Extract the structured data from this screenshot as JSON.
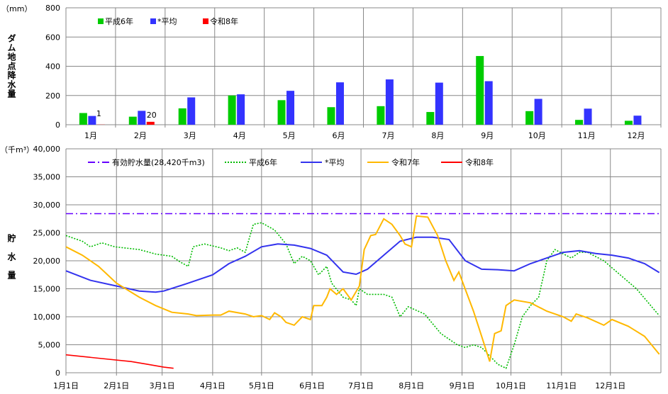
{
  "chart_data": [
    {
      "type": "bar",
      "unit_label": "（mm）",
      "ylabel": "ダム地点降水量",
      "ylim": [
        0,
        800
      ],
      "yticks": [
        "0",
        "200",
        "400",
        "600",
        "800"
      ],
      "categories": [
        "1月",
        "2月",
        "3月",
        "4月",
        "5月",
        "6月",
        "7月",
        "8月",
        "9月",
        "10月",
        "11月",
        "12月"
      ],
      "series": [
        {
          "name": "平成6年",
          "color": "#00cc00",
          "values": [
            80,
            55,
            112,
            200,
            168,
            120,
            127,
            87,
            470,
            93,
            33,
            27
          ]
        },
        {
          "name": "*平均",
          "color": "#3333ff",
          "values": [
            60,
            95,
            187,
            208,
            232,
            290,
            310,
            288,
            298,
            177,
            110,
            62
          ]
        },
        {
          "name": "令和8年",
          "color": "#ff0000",
          "values": [
            1,
            20,
            null,
            null,
            null,
            null,
            null,
            null,
            null,
            null,
            null,
            null
          ]
        }
      ],
      "data_labels": [
        "1",
        "20"
      ],
      "legend": "top-left"
    },
    {
      "type": "line",
      "unit_label": "（千m³）",
      "ylabel": "貯水量",
      "ylim": [
        0,
        40000
      ],
      "yticks": [
        "0",
        "5,000",
        "10,000",
        "15,000",
        "20,000",
        "25,000",
        "30,000",
        "35,000",
        "40,000"
      ],
      "xticks": [
        "1月1日",
        "2月1日",
        "3月1日",
        "4月1日",
        "5月1日",
        "6月1日",
        "7月1日",
        "8月1日",
        "9月1日",
        "10月1日",
        "11月1日",
        "12月1日"
      ],
      "xtick_days": [
        0,
        31,
        59,
        90,
        120,
        151,
        181,
        212,
        243,
        273,
        304,
        334
      ],
      "xlim_days": [
        0,
        365
      ],
      "legend": "top",
      "series": [
        {
          "name": "有効貯水量(28,420千m3)",
          "color": "#6600ff",
          "style": "dashdot",
          "points": [
            [
              0,
              28420
            ],
            [
              365,
              28420
            ]
          ]
        },
        {
          "name": "平成6年",
          "color": "#00bb00",
          "style": "dotted",
          "points": [
            [
              0,
              24500
            ],
            [
              10,
              23500
            ],
            [
              15,
              22500
            ],
            [
              22,
              23200
            ],
            [
              30,
              22500
            ],
            [
              45,
              22000
            ],
            [
              55,
              21200
            ],
            [
              65,
              20800
            ],
            [
              70,
              19800
            ],
            [
              75,
              19000
            ],
            [
              78,
              22500
            ],
            [
              85,
              23000
            ],
            [
              95,
              22300
            ],
            [
              100,
              21800
            ],
            [
              105,
              22300
            ],
            [
              110,
              21500
            ],
            [
              115,
              26500
            ],
            [
              120,
              26800
            ],
            [
              128,
              25500
            ],
            [
              135,
              23000
            ],
            [
              140,
              19500
            ],
            [
              145,
              20800
            ],
            [
              150,
              20000
            ],
            [
              155,
              17500
            ],
            [
              160,
              19000
            ],
            [
              163,
              16000
            ],
            [
              170,
              13500
            ],
            [
              175,
              13000
            ],
            [
              178,
              12000
            ],
            [
              180,
              15000
            ],
            [
              185,
              14000
            ],
            [
              195,
              14000
            ],
            [
              200,
              13500
            ],
            [
              205,
              10000
            ],
            [
              210,
              11800
            ],
            [
              220,
              10500
            ],
            [
              230,
              7000
            ],
            [
              240,
              5000
            ],
            [
              245,
              4500
            ],
            [
              250,
              5000
            ],
            [
              255,
              4500
            ],
            [
              260,
              3000
            ],
            [
              265,
              1500
            ],
            [
              270,
              800
            ],
            [
              275,
              5000
            ],
            [
              280,
              10000
            ],
            [
              285,
              12000
            ],
            [
              290,
              13500
            ],
            [
              295,
              20000
            ],
            [
              300,
              22000
            ],
            [
              310,
              20500
            ],
            [
              315,
              21500
            ],
            [
              320,
              21500
            ],
            [
              330,
              20000
            ],
            [
              340,
              17500
            ],
            [
              350,
              15000
            ],
            [
              364,
              10200
            ]
          ]
        },
        {
          "name": "*平均",
          "color": "#3333ee",
          "style": "solid",
          "points": [
            [
              0,
              18200
            ],
            [
              15,
              16500
            ],
            [
              31,
              15500
            ],
            [
              45,
              14600
            ],
            [
              55,
              14400
            ],
            [
              60,
              14600
            ],
            [
              75,
              16000
            ],
            [
              90,
              17500
            ],
            [
              100,
              19500
            ],
            [
              110,
              20800
            ],
            [
              120,
              22500
            ],
            [
              130,
              23000
            ],
            [
              140,
              22800
            ],
            [
              150,
              22200
            ],
            [
              160,
              21000
            ],
            [
              170,
              18000
            ],
            [
              178,
              17600
            ],
            [
              185,
              18500
            ],
            [
              195,
              21000
            ],
            [
              205,
              23500
            ],
            [
              215,
              24200
            ],
            [
              225,
              24200
            ],
            [
              235,
              23800
            ],
            [
              245,
              20000
            ],
            [
              255,
              18500
            ],
            [
              265,
              18400
            ],
            [
              275,
              18200
            ],
            [
              285,
              19500
            ],
            [
              295,
              20500
            ],
            [
              305,
              21500
            ],
            [
              315,
              21800
            ],
            [
              325,
              21300
            ],
            [
              335,
              21000
            ],
            [
              345,
              20500
            ],
            [
              355,
              19500
            ],
            [
              364,
              17900
            ]
          ]
        },
        {
          "name": "令和7年",
          "color": "#ffb800",
          "style": "solid",
          "points": [
            [
              0,
              22500
            ],
            [
              10,
              21000
            ],
            [
              20,
              19000
            ],
            [
              31,
              16000
            ],
            [
              45,
              13500
            ],
            [
              55,
              12000
            ],
            [
              65,
              10800
            ],
            [
              75,
              10500
            ],
            [
              80,
              10200
            ],
            [
              90,
              10300
            ],
            [
              95,
              10300
            ],
            [
              100,
              11000
            ],
            [
              110,
              10500
            ],
            [
              115,
              10000
            ],
            [
              120,
              10200
            ],
            [
              125,
              9500
            ],
            [
              128,
              10700
            ],
            [
              132,
              10000
            ],
            [
              135,
              9000
            ],
            [
              140,
              8500
            ],
            [
              145,
              10000
            ],
            [
              150,
              9500
            ],
            [
              152,
              12000
            ],
            [
              157,
              12000
            ],
            [
              160,
              13500
            ],
            [
              162,
              15000
            ],
            [
              166,
              14000
            ],
            [
              170,
              15000
            ],
            [
              175,
              13000
            ],
            [
              180,
              15500
            ],
            [
              183,
              22000
            ],
            [
              187,
              24500
            ],
            [
              190,
              24700
            ],
            [
              195,
              27500
            ],
            [
              200,
              26500
            ],
            [
              205,
              24500
            ],
            [
              208,
              23000
            ],
            [
              212,
              22500
            ],
            [
              215,
              28000
            ],
            [
              222,
              27800
            ],
            [
              228,
              24500
            ],
            [
              233,
              20000
            ],
            [
              238,
              16500
            ],
            [
              241,
              18000
            ],
            [
              250,
              11000
            ],
            [
              255,
              6500
            ],
            [
              260,
              2000
            ],
            [
              263,
              7000
            ],
            [
              267,
              7500
            ],
            [
              270,
              12000
            ],
            [
              275,
              13000
            ],
            [
              285,
              12500
            ],
            [
              295,
              11000
            ],
            [
              305,
              10000
            ],
            [
              310,
              9200
            ],
            [
              313,
              10500
            ],
            [
              320,
              9800
            ],
            [
              330,
              8500
            ],
            [
              335,
              9500
            ],
            [
              345,
              8300
            ],
            [
              355,
              6500
            ],
            [
              364,
              3300
            ]
          ]
        },
        {
          "name": "令和8年",
          "color": "#ff0000",
          "style": "solid",
          "points": [
            [
              0,
              3200
            ],
            [
              20,
              2600
            ],
            [
              40,
              2000
            ],
            [
              50,
              1500
            ],
            [
              60,
              1000
            ],
            [
              66,
              800
            ]
          ]
        }
      ]
    }
  ]
}
